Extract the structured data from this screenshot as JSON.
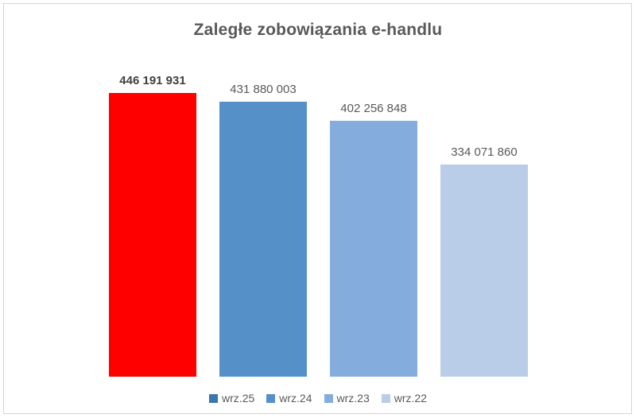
{
  "chart_data": {
    "type": "bar",
    "title": "Zaległe zobowiązania e-handlu",
    "categories": [
      "wrz.25",
      "wrz.24",
      "wrz.23",
      "wrz.22"
    ],
    "values": [
      446191931,
      431880003,
      402256848,
      334071860
    ],
    "value_labels": [
      "446 191 931",
      "431 880 003",
      "402 256 848",
      "334 071 860"
    ],
    "bar_colors": [
      "#FF0000",
      "#5590C8",
      "#84ACDC",
      "#B9CDE8"
    ],
    "legend_colors": [
      "#3A76AF",
      "#5590C8",
      "#84ACDC",
      "#B9CDE8"
    ],
    "label_styles": [
      "bold",
      "normal",
      "normal",
      "normal"
    ],
    "legend_position": "bottom",
    "xlabel": "",
    "ylabel": "",
    "ylim": [
      0,
      446191931
    ],
    "grid": false,
    "axes_visible": false,
    "colors": {
      "title_text": "#595959",
      "label_text": "#595959",
      "label_text_emphasis": "#3F3F3F",
      "legend_text": "#595959",
      "frame_border": "#D5D5D5",
      "background": "#FFFFFF"
    }
  }
}
